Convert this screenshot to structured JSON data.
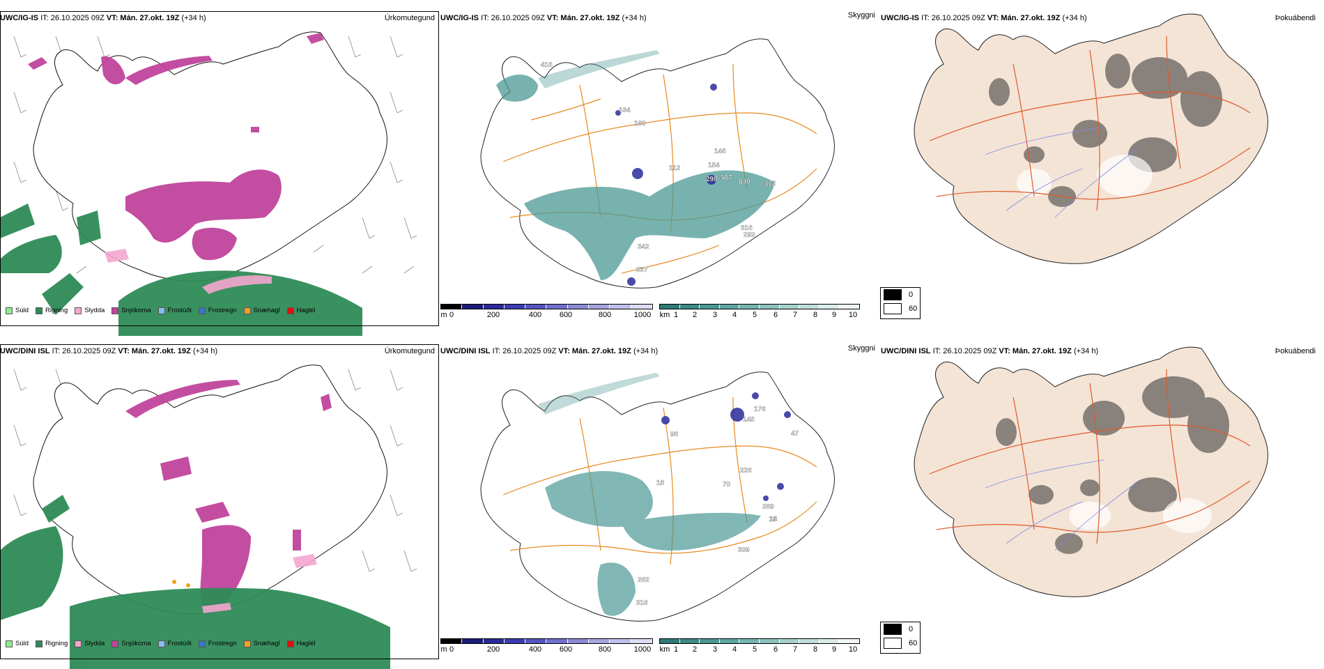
{
  "rows": [
    {
      "model": "UWC/IG-IS",
      "init": "IT: 26.10.2025 09Z",
      "valid": "VT: Mán. 27.okt. 19Z",
      "lead": "(+34 h)",
      "titles": [
        "Úrkomutegund",
        "Skyggni",
        "Þokuábendi"
      ],
      "visibility_labels": [
        {
          "text": "416"
        },
        {
          "text": "164"
        },
        {
          "text": "180"
        },
        {
          "text": "112"
        },
        {
          "text": "154"
        },
        {
          "text": "146"
        },
        {
          "text": "298"
        },
        {
          "text": "507"
        },
        {
          "text": "840"
        },
        {
          "text": "112"
        },
        {
          "text": "316"
        },
        {
          "text": "292"
        },
        {
          "text": "342"
        },
        {
          "text": "337"
        }
      ]
    },
    {
      "model": "UWC/DINI ISL",
      "init": "IT: 26.10.2025 09Z",
      "valid": "VT: Mán. 27.okt. 19Z",
      "lead": "(+34 h)",
      "titles": [
        "Úrkomutegund",
        "Skyggni",
        "Þokuábendi"
      ],
      "visibility_labels": [
        {
          "text": "176"
        },
        {
          "text": "145"
        },
        {
          "text": "47"
        },
        {
          "text": "98"
        },
        {
          "text": "15"
        },
        {
          "text": "226"
        },
        {
          "text": "70"
        },
        {
          "text": "289"
        },
        {
          "text": "24"
        },
        {
          "text": "15"
        },
        {
          "text": "309"
        },
        {
          "text": "282"
        },
        {
          "text": "318"
        }
      ]
    }
  ],
  "precip_legend": [
    {
      "label": "Súld",
      "color": "#90ee90"
    },
    {
      "label": "Rigning",
      "color": "#2e8b57"
    },
    {
      "label": "Slydda",
      "color": "#f4a6cf"
    },
    {
      "label": "Snjókoma",
      "color": "#c0449c"
    },
    {
      "label": "Frostúði",
      "color": "#87bdf0"
    },
    {
      "label": "Frostregn",
      "color": "#3a78c2"
    },
    {
      "label": "Snæhagl",
      "color": "#f0a020"
    },
    {
      "label": "Haglél",
      "color": "#e01010"
    }
  ],
  "ceiling_bar": {
    "unit": "m",
    "ticks": [
      "0",
      "200",
      "400",
      "600",
      "800",
      "1000"
    ],
    "colors": [
      "#000000",
      "#1a1a7a",
      "#2a2a9a",
      "#3c3cb0",
      "#5555c0",
      "#7070cc",
      "#8a8ad6",
      "#a5a5e0",
      "#c0c0ea",
      "#dcdcf4"
    ]
  },
  "visibility_bar": {
    "unit": "km",
    "ticks": [
      "1",
      "2",
      "3",
      "4",
      "5",
      "6",
      "7",
      "8",
      "9",
      "10"
    ],
    "colors": [
      "#2f7b78",
      "#3d8a86",
      "#4b9894",
      "#5ea6a2",
      "#74b4b0",
      "#8cc2be",
      "#a5d0cc",
      "#bfdeda",
      "#d9ece9",
      "#f0f7f6"
    ]
  },
  "fog_key": [
    {
      "label": "0",
      "color": "#000000"
    },
    {
      "label": "60",
      "color": "#ffffff"
    }
  ]
}
